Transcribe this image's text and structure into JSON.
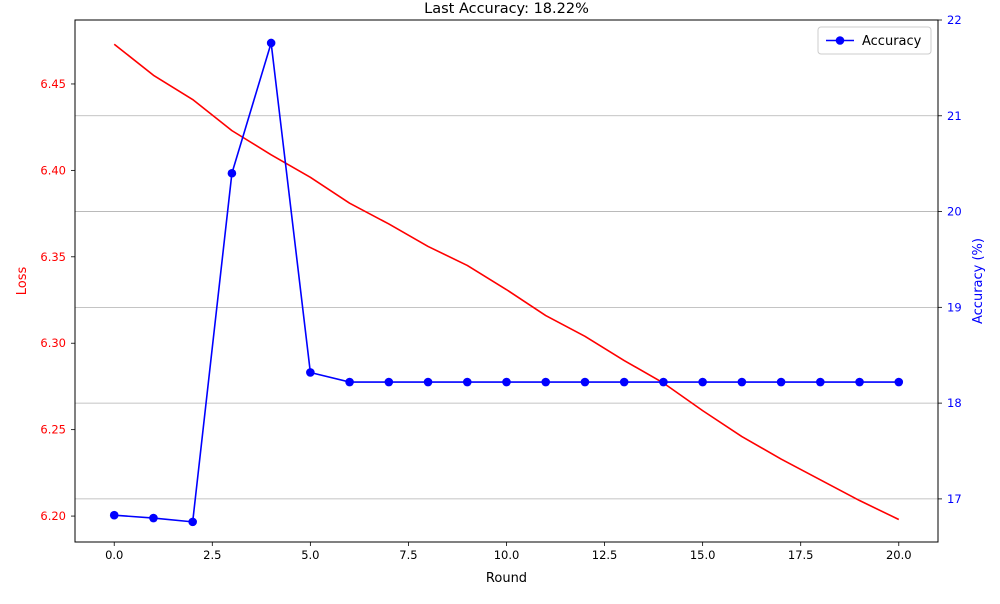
{
  "chart_data": {
    "type": "line",
    "title": "Last Accuracy: 18.22%",
    "xlabel": "Round",
    "ylabel_left": "Loss",
    "ylabel_right": "Accuracy (%)",
    "xlim": [
      -1.0,
      21.0
    ],
    "ylim_left": [
      6.185,
      6.487
    ],
    "ylim_right": [
      16.55,
      22.0
    ],
    "x_ticks": [
      0.0,
      2.5,
      5.0,
      7.5,
      10.0,
      12.5,
      15.0,
      17.5,
      20.0
    ],
    "x_tick_labels": [
      "0.0",
      "2.5",
      "5.0",
      "7.5",
      "10.0",
      "12.5",
      "15.0",
      "17.5",
      "20.0"
    ],
    "y_left_ticks": [
      6.2,
      6.25,
      6.3,
      6.35,
      6.4,
      6.45
    ],
    "y_left_tick_labels": [
      "6.20",
      "6.25",
      "6.30",
      "6.35",
      "6.40",
      "6.45"
    ],
    "y_right_ticks": [
      17,
      18,
      19,
      20,
      21,
      22
    ],
    "y_right_tick_labels": [
      "17",
      "18",
      "19",
      "20",
      "21",
      "22"
    ],
    "grid": "horizontal, right axis",
    "legend_placement": "top-right",
    "x": [
      0,
      1,
      2,
      3,
      4,
      5,
      6,
      7,
      8,
      9,
      10,
      11,
      12,
      13,
      14,
      15,
      16,
      17,
      18,
      19,
      20
    ],
    "series": [
      {
        "axis": "left",
        "color": "#ff0000",
        "markers": false,
        "values": [
          6.473,
          6.455,
          6.441,
          6.423,
          6.409,
          6.396,
          6.381,
          6.369,
          6.356,
          6.345,
          6.331,
          6.316,
          6.304,
          6.29,
          6.277,
          6.261,
          6.246,
          6.233,
          6.221,
          6.209,
          6.198
        ]
      },
      {
        "name": "Accuracy",
        "axis": "right",
        "color": "#0000ff",
        "markers": true,
        "values": [
          16.83,
          16.8,
          16.76,
          20.4,
          21.76,
          18.32,
          18.22,
          18.22,
          18.22,
          18.22,
          18.22,
          18.22,
          18.22,
          18.22,
          18.22,
          18.22,
          18.22,
          18.22,
          18.22,
          18.22,
          18.22
        ]
      }
    ]
  }
}
